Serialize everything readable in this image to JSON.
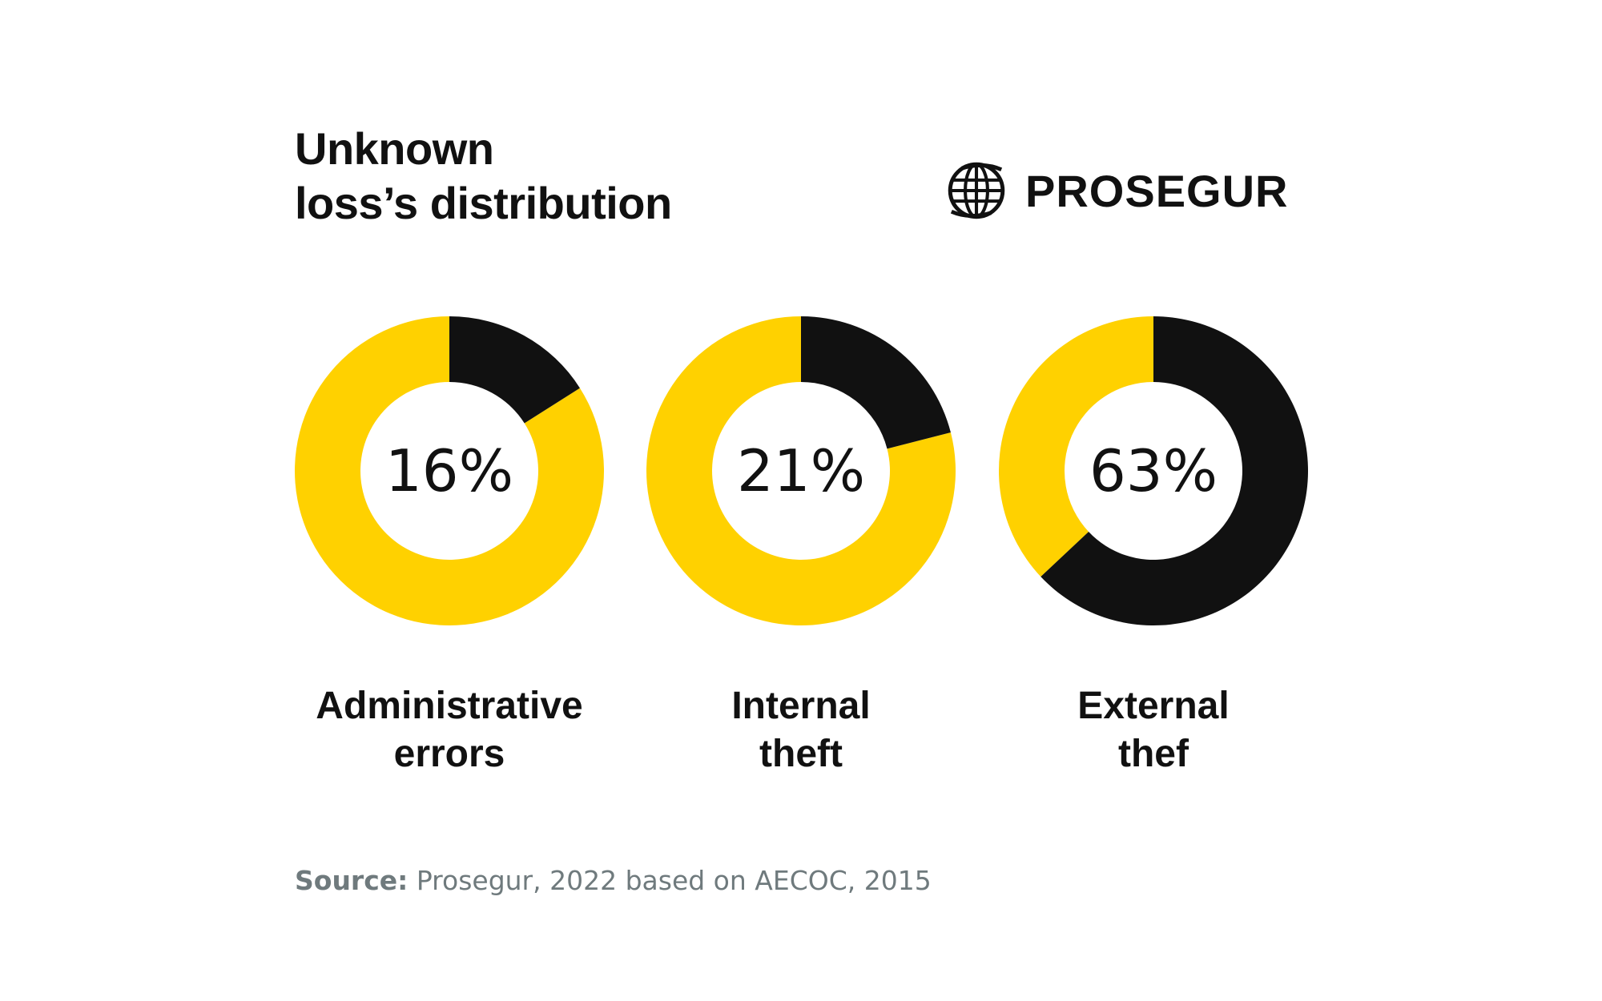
{
  "title": {
    "line1": "Unknown",
    "line2": "loss’s distribution"
  },
  "brand": {
    "name": "PROSEGUR",
    "icon": "globe-icon"
  },
  "colors": {
    "yellow": "#ffd100",
    "black": "#111111",
    "source_gray": "#6f7a7d"
  },
  "chart_data": [
    {
      "type": "pie",
      "donut": true,
      "value": 16,
      "value_label": "16%",
      "label_line1": "Administrative",
      "label_line2": "errors",
      "highlight_color": "#111111",
      "rest_color": "#ffd100"
    },
    {
      "type": "pie",
      "donut": true,
      "value": 21,
      "value_label": "21%",
      "label_line1": "Internal",
      "label_line2": "theft",
      "highlight_color": "#111111",
      "rest_color": "#ffd100"
    },
    {
      "type": "pie",
      "donut": true,
      "value": 63,
      "value_label": "63%",
      "label_line1": "External",
      "label_line2": "thef",
      "highlight_color": "#111111",
      "rest_color": "#ffd100"
    }
  ],
  "source": {
    "label": "Source:",
    "text": " Prosegur, 2022 based on AECOC, 2015"
  }
}
